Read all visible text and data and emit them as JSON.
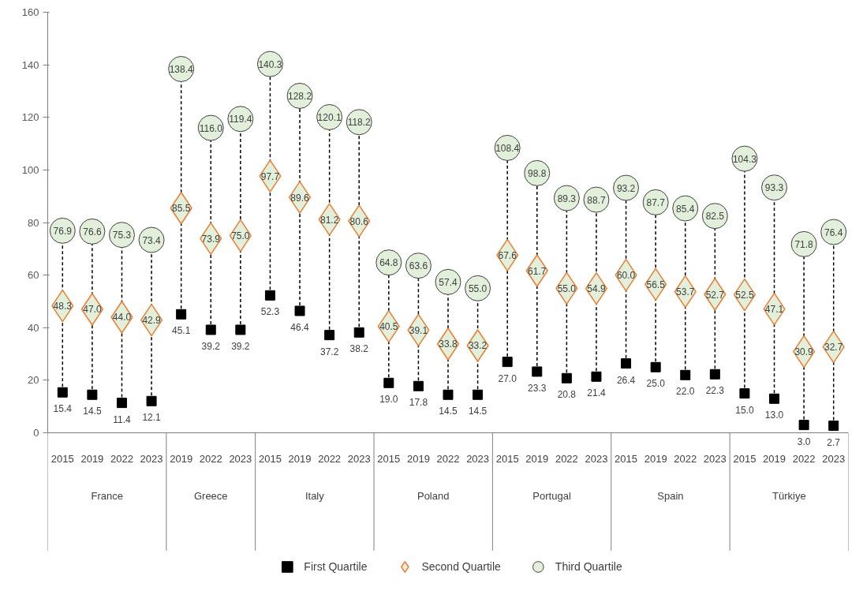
{
  "chart_data": {
    "type": "scatter",
    "categories": [
      "2015",
      "2019",
      "2022",
      "2023",
      "2019",
      "2022",
      "2023",
      "2015",
      "2019",
      "2022",
      "2023",
      "2015",
      "2019",
      "2022",
      "2023",
      "2015",
      "2019",
      "2022",
      "2023",
      "2015",
      "2019",
      "2022",
      "2023",
      "2015",
      "2019",
      "2022",
      "2023"
    ],
    "annotations": [
      "France",
      "Greece",
      "Italy",
      "Poland",
      "Portugal",
      "Spain",
      "Türkiye"
    ],
    "ylim": [
      0,
      160
    ],
    "yticks": [
      0,
      20,
      40,
      60,
      80,
      100,
      120,
      140,
      160
    ],
    "grid": false,
    "legend": "bottom",
    "series": [
      {
        "name": "First Quartile",
        "color": "#000000",
        "marker": "square",
        "values": [
          15.4,
          14.5,
          11.4,
          12.1,
          45.1,
          39.2,
          39.2,
          52.3,
          46.4,
          37.2,
          38.2,
          19.0,
          17.8,
          14.5,
          14.5,
          27.0,
          23.3,
          20.8,
          21.4,
          26.4,
          25.0,
          22.0,
          22.3,
          15.0,
          13.0,
          3.0,
          2.7
        ],
        "value_labels": [
          "15.4",
          "14.5",
          "11.4",
          "12.1",
          "45.1",
          "39.2",
          "39.2",
          "52.3",
          "46.4",
          "37.2",
          "38.2",
          "19.0",
          "17.8",
          "14.5",
          "14.5",
          "27.0",
          "23.3",
          "20.8",
          "21.4",
          "26.4",
          "25.0",
          "22.0",
          "22.3",
          "15.0",
          "13.0",
          "3.0",
          "2.7"
        ]
      },
      {
        "name": "Second Quartile",
        "color": "#ed7d31",
        "marker": "diamond",
        "values": [
          48.3,
          47.0,
          44.0,
          42.9,
          85.5,
          73.9,
          75.0,
          97.7,
          89.6,
          81.2,
          80.6,
          40.5,
          39.1,
          33.8,
          33.2,
          67.6,
          61.7,
          55.0,
          54.9,
          60.0,
          56.5,
          53.7,
          52.7,
          52.5,
          47.1,
          30.9,
          32.7
        ],
        "value_labels": [
          "48.3",
          "47.0",
          "44.0",
          "42.9",
          "85.5",
          "73.9",
          "75.0",
          "97.7",
          "89.6",
          "81.2",
          "80.6",
          "40.5",
          "39.1",
          "33.8",
          "33.2",
          "67.6",
          "61.7",
          "55.0",
          "54.9",
          "60.0",
          "56.5",
          "53.7",
          "52.7",
          "52.5",
          "47.1",
          "30.9",
          "32.7"
        ]
      },
      {
        "name": "Third Quartile",
        "color": "#404040",
        "marker": "circle",
        "values": [
          76.9,
          76.6,
          75.3,
          73.4,
          138.4,
          116.0,
          119.4,
          140.3,
          128.2,
          120.1,
          118.2,
          64.8,
          63.6,
          57.4,
          55.0,
          108.4,
          98.8,
          89.3,
          88.7,
          93.2,
          87.7,
          85.4,
          82.5,
          104.3,
          93.3,
          71.8,
          76.4
        ],
        "value_labels": [
          "76.9",
          "76.6",
          "75.3",
          "73.4",
          "138.4",
          "116.0",
          "119.4",
          "140.3",
          "128.2",
          "120.1",
          "118.2",
          "64.8",
          "63.6",
          "57.4",
          "55.0",
          "108.4",
          "98.8",
          "89.3",
          "88.7",
          "93.2",
          "87.7",
          "85.4",
          "82.5",
          "104.3",
          "93.3",
          "71.8",
          "76.4"
        ]
      }
    ]
  }
}
